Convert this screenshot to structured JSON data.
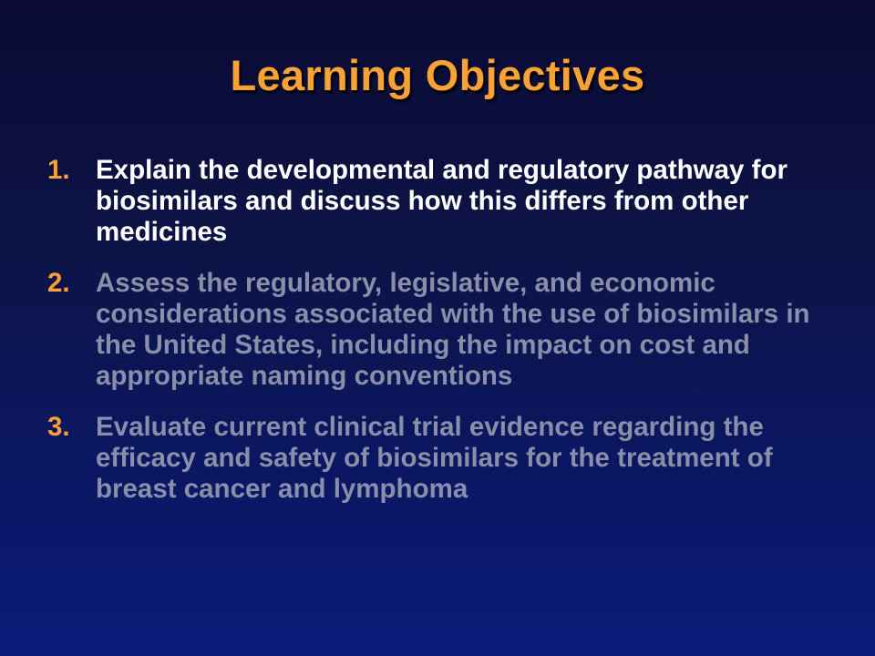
{
  "slide": {
    "title": "Learning Objectives",
    "objectives": [
      {
        "number": "1.",
        "text": "Explain the developmental and regulatory pathway for biosimilars and discuss how this differs from other medicines",
        "state": "highlighted"
      },
      {
        "number": "2.",
        "text": "Assess the regulatory, legislative, and economic considerations associated with the use of biosimilars in the United States, including the impact on cost and appropriate naming conventions",
        "state": "dimmed"
      },
      {
        "number": "3.",
        "text": "Evaluate current clinical trial evidence regarding the efficacy and safety of biosimilars for the treatment of breast cancer and lymphoma",
        "state": "dimmed"
      }
    ]
  },
  "colors": {
    "background_top": "#0b0b33",
    "background_bottom": "#0a1a7a",
    "accent_orange": "#f7a234",
    "highlight_text": "#ffffff",
    "dimmed_text": "#8a8fa9"
  }
}
